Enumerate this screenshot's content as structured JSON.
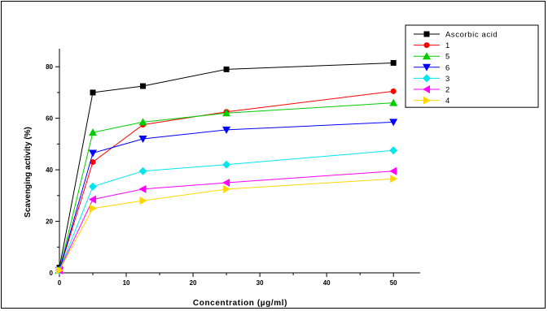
{
  "chart_data": {
    "type": "line",
    "title": "",
    "xlabel": "Concentration (µg/ml)",
    "ylabel": "Scavenging activity (%)",
    "xlim": [
      0,
      54
    ],
    "ylim": [
      0,
      87
    ],
    "x_ticks": [
      0,
      10,
      20,
      30,
      40,
      50
    ],
    "y_ticks": [
      0,
      20,
      40,
      60,
      80
    ],
    "x": [
      0,
      5,
      12.5,
      25,
      50
    ],
    "grid": false,
    "legend_position": "top-right",
    "series": [
      {
        "name": "Ascorbic acid",
        "color": "#000000",
        "marker": "square",
        "values": [
          2,
          70,
          72.5,
          79,
          81.5
        ]
      },
      {
        "name": "1",
        "color": "#ff0000",
        "marker": "circle",
        "values": [
          1,
          43,
          57.5,
          62.5,
          70.5
        ]
      },
      {
        "name": "5",
        "color": "#00cc00",
        "marker": "triangle-up",
        "values": [
          1,
          54.5,
          58.5,
          62,
          66
        ]
      },
      {
        "name": "6",
        "color": "#0000ff",
        "marker": "triangle-down",
        "values": [
          1,
          46.5,
          52,
          55.5,
          58.5
        ]
      },
      {
        "name": "3",
        "color": "#00e5ee",
        "marker": "diamond",
        "values": [
          1,
          33.5,
          39.5,
          42,
          47.5
        ]
      },
      {
        "name": "2",
        "color": "#ff00ff",
        "marker": "triangle-left",
        "values": [
          1,
          28.5,
          32.5,
          35,
          39.5
        ]
      },
      {
        "name": "4",
        "color": "#ffd700",
        "marker": "triangle-right",
        "values": [
          1,
          25,
          28,
          32.5,
          36.5
        ]
      }
    ]
  }
}
